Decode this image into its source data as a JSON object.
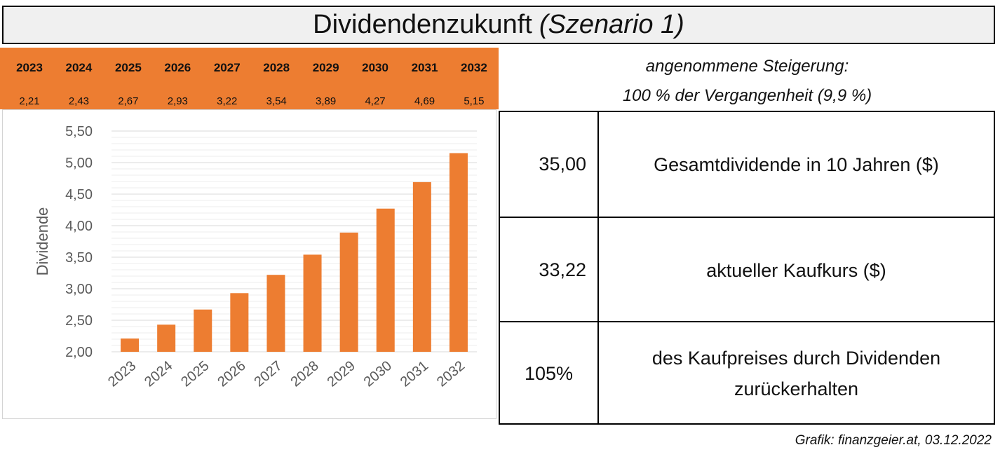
{
  "title": {
    "main": "Dividendenzukunft",
    "italic": "(Szenario 1)"
  },
  "table_strip": {
    "years": [
      "2023",
      "2024",
      "2025",
      "2026",
      "2027",
      "2028",
      "2029",
      "2030",
      "2031",
      "2032"
    ],
    "values": [
      "2,21",
      "2,43",
      "2,67",
      "2,93",
      "3,22",
      "3,54",
      "3,89",
      "4,27",
      "4,69",
      "5,15"
    ]
  },
  "assumption": {
    "line1": "angenommene Steigerung:",
    "line2": "100 % der Vergangenheit (9,9 %)"
  },
  "summary_rows": [
    {
      "value": "35,00",
      "label": "Gesamtdividende in 10 Jahren ($)"
    },
    {
      "value": "33,22",
      "label": "aktueller Kaufkurs ($)"
    },
    {
      "value": "105%",
      "label": "des Kaufpreises durch Dividenden zurückerhalten"
    }
  ],
  "credit": "Grafik: finanzgeier.at, 03.12.2022",
  "colors": {
    "accent": "#ed7d31",
    "title_bg": "#f0f0f0",
    "axis_text": "#595959",
    "grid": "#d9d9d9"
  },
  "chart_data": {
    "type": "bar",
    "categories": [
      "2023",
      "2024",
      "2025",
      "2026",
      "2027",
      "2028",
      "2029",
      "2030",
      "2031",
      "2032"
    ],
    "values": [
      2.21,
      2.43,
      2.67,
      2.93,
      3.22,
      3.54,
      3.89,
      4.27,
      4.69,
      5.15
    ],
    "title": "",
    "xlabel": "",
    "ylabel": "Dividende",
    "ylim": [
      2.0,
      5.5
    ],
    "yticks": [
      "2,00",
      "2,50",
      "3,00",
      "3,50",
      "4,00",
      "4,50",
      "5,00",
      "5,50"
    ],
    "grid": true,
    "legend": "none"
  }
}
